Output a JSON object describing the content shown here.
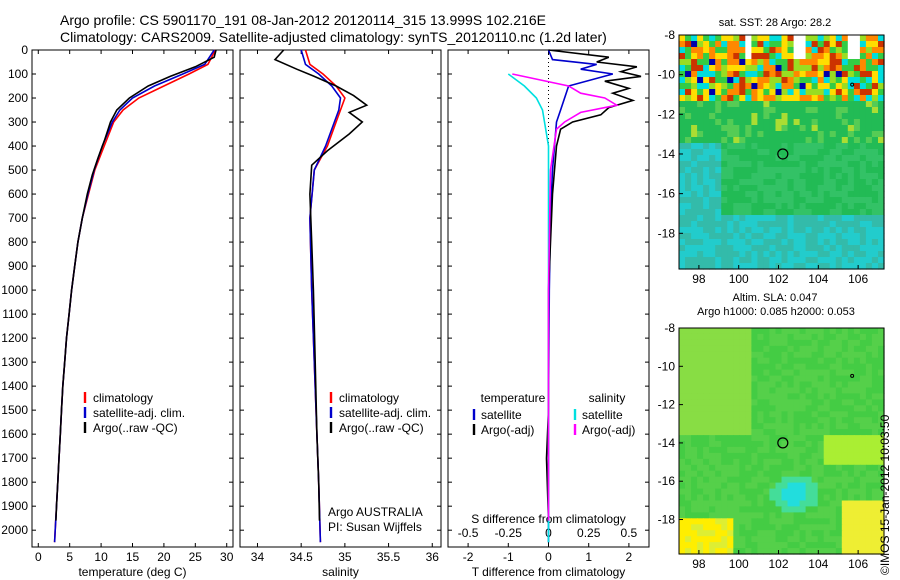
{
  "header": {
    "line1": "Argo profile: CS 5901170_191 08-Jan-2012 20120114_315 13.999S 102.216E",
    "line2": "Climatology: CARS2009. Satellite-adjusted climatology: synTS_20120110.nc (1.2d later)"
  },
  "stamp": "©IMOS 15-Jan-2012 10:03:50",
  "colors": {
    "climatology": "#ff0000",
    "satellite": "#0000cc",
    "argo": "#000000",
    "sal_satellite": "#00e0e0",
    "sal_argo": "#ff00ff"
  },
  "depth_axis": {
    "ticks": [
      0,
      100,
      200,
      300,
      400,
      500,
      600,
      700,
      800,
      900,
      1000,
      1100,
      1200,
      1300,
      1400,
      1500,
      1600,
      1700,
      1800,
      1900,
      2000
    ],
    "range": [
      0,
      2070
    ]
  },
  "chart_data": [
    {
      "type": "line",
      "xlabel": "temperature (deg C)",
      "xlim": [
        -1,
        31
      ],
      "xticks": [
        0,
        5,
        10,
        15,
        20,
        25,
        30
      ],
      "ylim": [
        0,
        2070
      ],
      "y_reversed": true,
      "legend": [
        "climatology",
        "satellite-adj. clim.",
        "Argo(..raw -QC)"
      ],
      "series": [
        {
          "name": "climatology",
          "points": [
            [
              28.2,
              0
            ],
            [
              27,
              60
            ],
            [
              24,
              100
            ],
            [
              20,
              150
            ],
            [
              16,
              200
            ],
            [
              13.5,
              250
            ],
            [
              12,
              300
            ],
            [
              10.5,
              400
            ],
            [
              9,
              500
            ],
            [
              8,
              600
            ],
            [
              7,
              700
            ],
            [
              6.3,
              800
            ],
            [
              5.8,
              900
            ],
            [
              5.3,
              1000
            ],
            [
              4.9,
              1100
            ],
            [
              4.5,
              1200
            ],
            [
              4.2,
              1300
            ],
            [
              3.9,
              1400
            ],
            [
              3.7,
              1500
            ],
            [
              3.5,
              1600
            ],
            [
              3.3,
              1700
            ],
            [
              3.1,
              1800
            ],
            [
              2.9,
              1900
            ],
            [
              2.7,
              2000
            ],
            [
              2.6,
              2050
            ]
          ]
        },
        {
          "name": "satellite-adj. clim.",
          "points": [
            [
              28,
              0
            ],
            [
              26.5,
              60
            ],
            [
              23,
              100
            ],
            [
              18.5,
              150
            ],
            [
              15,
              200
            ],
            [
              13,
              250
            ],
            [
              11.8,
              300
            ],
            [
              10.2,
              400
            ],
            [
              8.9,
              500
            ],
            [
              7.9,
              600
            ],
            [
              7,
              700
            ],
            [
              6.3,
              800
            ],
            [
              5.8,
              900
            ],
            [
              5.3,
              1000
            ],
            [
              4.9,
              1100
            ],
            [
              4.5,
              1200
            ],
            [
              4.2,
              1300
            ],
            [
              3.9,
              1400
            ],
            [
              3.7,
              1500
            ],
            [
              3.5,
              1600
            ],
            [
              3.3,
              1700
            ],
            [
              3.1,
              1800
            ],
            [
              2.9,
              1900
            ],
            [
              2.7,
              2000
            ],
            [
              2.6,
              2050
            ]
          ]
        },
        {
          "name": "Argo(..raw -QC)",
          "points": [
            [
              28.3,
              0
            ],
            [
              28,
              30
            ],
            [
              25,
              70
            ],
            [
              21,
              110
            ],
            [
              17.5,
              150
            ],
            [
              14.5,
              200
            ],
            [
              12.5,
              250
            ],
            [
              11.5,
              300
            ],
            [
              10.5,
              380
            ],
            [
              9.5,
              450
            ],
            [
              8.6,
              520
            ],
            [
              7.8,
              600
            ],
            [
              7,
              700
            ],
            [
              6.3,
              800
            ],
            [
              5.8,
              900
            ],
            [
              5.3,
              1000
            ],
            [
              4.9,
              1100
            ],
            [
              4.5,
              1200
            ],
            [
              4.2,
              1300
            ],
            [
              3.9,
              1400
            ],
            [
              3.7,
              1500
            ],
            [
              3.5,
              1600
            ],
            [
              3.3,
              1700
            ],
            [
              3.1,
              1800
            ],
            [
              2.9,
              1900
            ],
            [
              2.8,
              1960
            ]
          ]
        }
      ]
    },
    {
      "type": "line",
      "xlabel": "salinity",
      "xlim": [
        33.8,
        36.1
      ],
      "xticks": [
        34,
        34.5,
        35,
        35.5,
        36
      ],
      "xtick_labels": [
        "34",
        "34.5",
        "35",
        "35.5",
        "36"
      ],
      "ylim": [
        0,
        2070
      ],
      "y_reversed": true,
      "legend": [
        "climatology",
        "satellite-adj. clim.",
        "Argo(..raw -QC)"
      ],
      "annotation": [
        "Argo AUSTRALIA",
        "PI: Susan Wijffels"
      ],
      "series": [
        {
          "name": "climatology",
          "points": [
            [
              34.55,
              0
            ],
            [
              34.6,
              60
            ],
            [
              34.75,
              100
            ],
            [
              34.9,
              150
            ],
            [
              35.0,
              200
            ],
            [
              34.95,
              250
            ],
            [
              34.9,
              300
            ],
            [
              34.8,
              400
            ],
            [
              34.65,
              500
            ],
            [
              34.6,
              700
            ],
            [
              34.62,
              1000
            ],
            [
              34.65,
              1300
            ],
            [
              34.68,
              1600
            ],
            [
              34.7,
              1800
            ],
            [
              34.72,
              2050
            ]
          ]
        },
        {
          "name": "satellite-adj. clim.",
          "points": [
            [
              34.5,
              0
            ],
            [
              34.55,
              60
            ],
            [
              34.7,
              100
            ],
            [
              34.85,
              150
            ],
            [
              34.95,
              200
            ],
            [
              34.93,
              250
            ],
            [
              34.88,
              300
            ],
            [
              34.78,
              400
            ],
            [
              34.65,
              500
            ],
            [
              34.6,
              700
            ],
            [
              34.62,
              1000
            ],
            [
              34.65,
              1300
            ],
            [
              34.68,
              1600
            ],
            [
              34.7,
              1800
            ],
            [
              34.72,
              2050
            ]
          ]
        },
        {
          "name": "Argo(..raw -QC)",
          "points": [
            [
              34.3,
              0
            ],
            [
              34.2,
              40
            ],
            [
              34.45,
              80
            ],
            [
              34.65,
              110
            ],
            [
              34.9,
              150
            ],
            [
              35.1,
              190
            ],
            [
              35.25,
              230
            ],
            [
              35.05,
              260
            ],
            [
              35.2,
              300
            ],
            [
              35.05,
              350
            ],
            [
              34.8,
              420
            ],
            [
              34.62,
              480
            ],
            [
              34.6,
              600
            ],
            [
              34.62,
              800
            ],
            [
              34.64,
              1000
            ],
            [
              34.66,
              1300
            ],
            [
              34.68,
              1600
            ],
            [
              34.7,
              1800
            ],
            [
              34.71,
              1960
            ]
          ]
        }
      ]
    },
    {
      "type": "line",
      "xlabel": "T difference from climatology",
      "xlabel2": "S difference from climatology",
      "xlim": [
        -2.5,
        2.5
      ],
      "xticks": [
        -2,
        -1,
        0,
        1,
        2
      ],
      "s_xticks": [
        -0.5,
        -0.25,
        0,
        0.25,
        0.5
      ],
      "s_xtick_labels": [
        "-0.5",
        "-0.25",
        "0",
        "0.25",
        "0.5"
      ],
      "ylim": [
        0,
        2070
      ],
      "y_reversed": true,
      "legend_temperature_title": "temperature",
      "legend_salinity_title": "salinity",
      "legend_temperature": [
        "satellite",
        "Argo(-adj)"
      ],
      "legend_salinity": [
        "satellite",
        "Argo(-adj)"
      ],
      "series": [
        {
          "name": "T satellite",
          "points": [
            [
              0,
              0
            ],
            [
              0.1,
              40
            ],
            [
              1.2,
              60
            ],
            [
              0.8,
              80
            ],
            [
              1.6,
              100
            ],
            [
              0.5,
              150
            ],
            [
              0.4,
              200
            ],
            [
              0.3,
              250
            ],
            [
              0.2,
              300
            ],
            [
              0.15,
              400
            ],
            [
              0.1,
              500
            ],
            [
              0.05,
              700
            ],
            [
              0.02,
              1000
            ],
            [
              0,
              1500
            ],
            [
              0,
              2050
            ]
          ]
        },
        {
          "name": "T Argo(-adj)",
          "points": [
            [
              0,
              0
            ],
            [
              1.5,
              30
            ],
            [
              1.2,
              50
            ],
            [
              2.2,
              70
            ],
            [
              1.8,
              90
            ],
            [
              2.3,
              110
            ],
            [
              1.4,
              130
            ],
            [
              2.0,
              160
            ],
            [
              1.6,
              180
            ],
            [
              2.1,
              210
            ],
            [
              1.5,
              240
            ],
            [
              1.3,
              270
            ],
            [
              0.6,
              300
            ],
            [
              0.3,
              330
            ],
            [
              0.2,
              400
            ],
            [
              0.15,
              500
            ],
            [
              0.1,
              600
            ],
            [
              0.05,
              800
            ],
            [
              0,
              1000
            ],
            [
              0,
              1500
            ],
            [
              -0.05,
              1700
            ],
            [
              0,
              1960
            ]
          ]
        },
        {
          "name": "S satellite",
          "points": [
            [
              -1,
              100
            ],
            [
              -0.6,
              150
            ],
            [
              -0.3,
              200
            ],
            [
              -0.15,
              250
            ],
            [
              0,
              400
            ],
            [
              0,
              700
            ],
            [
              0,
              1000
            ],
            [
              0,
              1500
            ],
            [
              0,
              2050
            ]
          ]
        },
        {
          "name": "S Argo(-adj)",
          "points": [
            [
              -0.9,
              100
            ],
            [
              0.5,
              150
            ],
            [
              0.8,
              180
            ],
            [
              1.4,
              200
            ],
            [
              1.7,
              230
            ],
            [
              0.8,
              260
            ],
            [
              0.4,
              300
            ],
            [
              0.2,
              330
            ],
            [
              0.05,
              500
            ],
            [
              0,
              1000
            ],
            [
              0,
              1500
            ],
            [
              0,
              1960
            ]
          ]
        }
      ]
    },
    {
      "type": "heatmap",
      "title": "sat. SST: 28 Argo: 28.2",
      "xticks": [
        98,
        100,
        102,
        104,
        106
      ],
      "yticks": [
        -8,
        -10,
        -12,
        -14,
        -16,
        -18
      ],
      "xlim": [
        97,
        107.3
      ],
      "ylim": [
        -19.8,
        -8
      ]
    },
    {
      "type": "heatmap",
      "title_line1": "Altim. SLA: 0.047",
      "title_line2": "Argo h1000: 0.085 h2000: 0.053",
      "xticks": [
        98,
        100,
        102,
        104,
        106
      ],
      "yticks": [
        -8,
        -10,
        -12,
        -14,
        -16,
        -18
      ],
      "xlim": [
        97,
        107.3
      ],
      "ylim": [
        -19.8,
        -8
      ]
    }
  ],
  "argo_position": {
    "lon": 102.216,
    "lat": -13.999
  }
}
